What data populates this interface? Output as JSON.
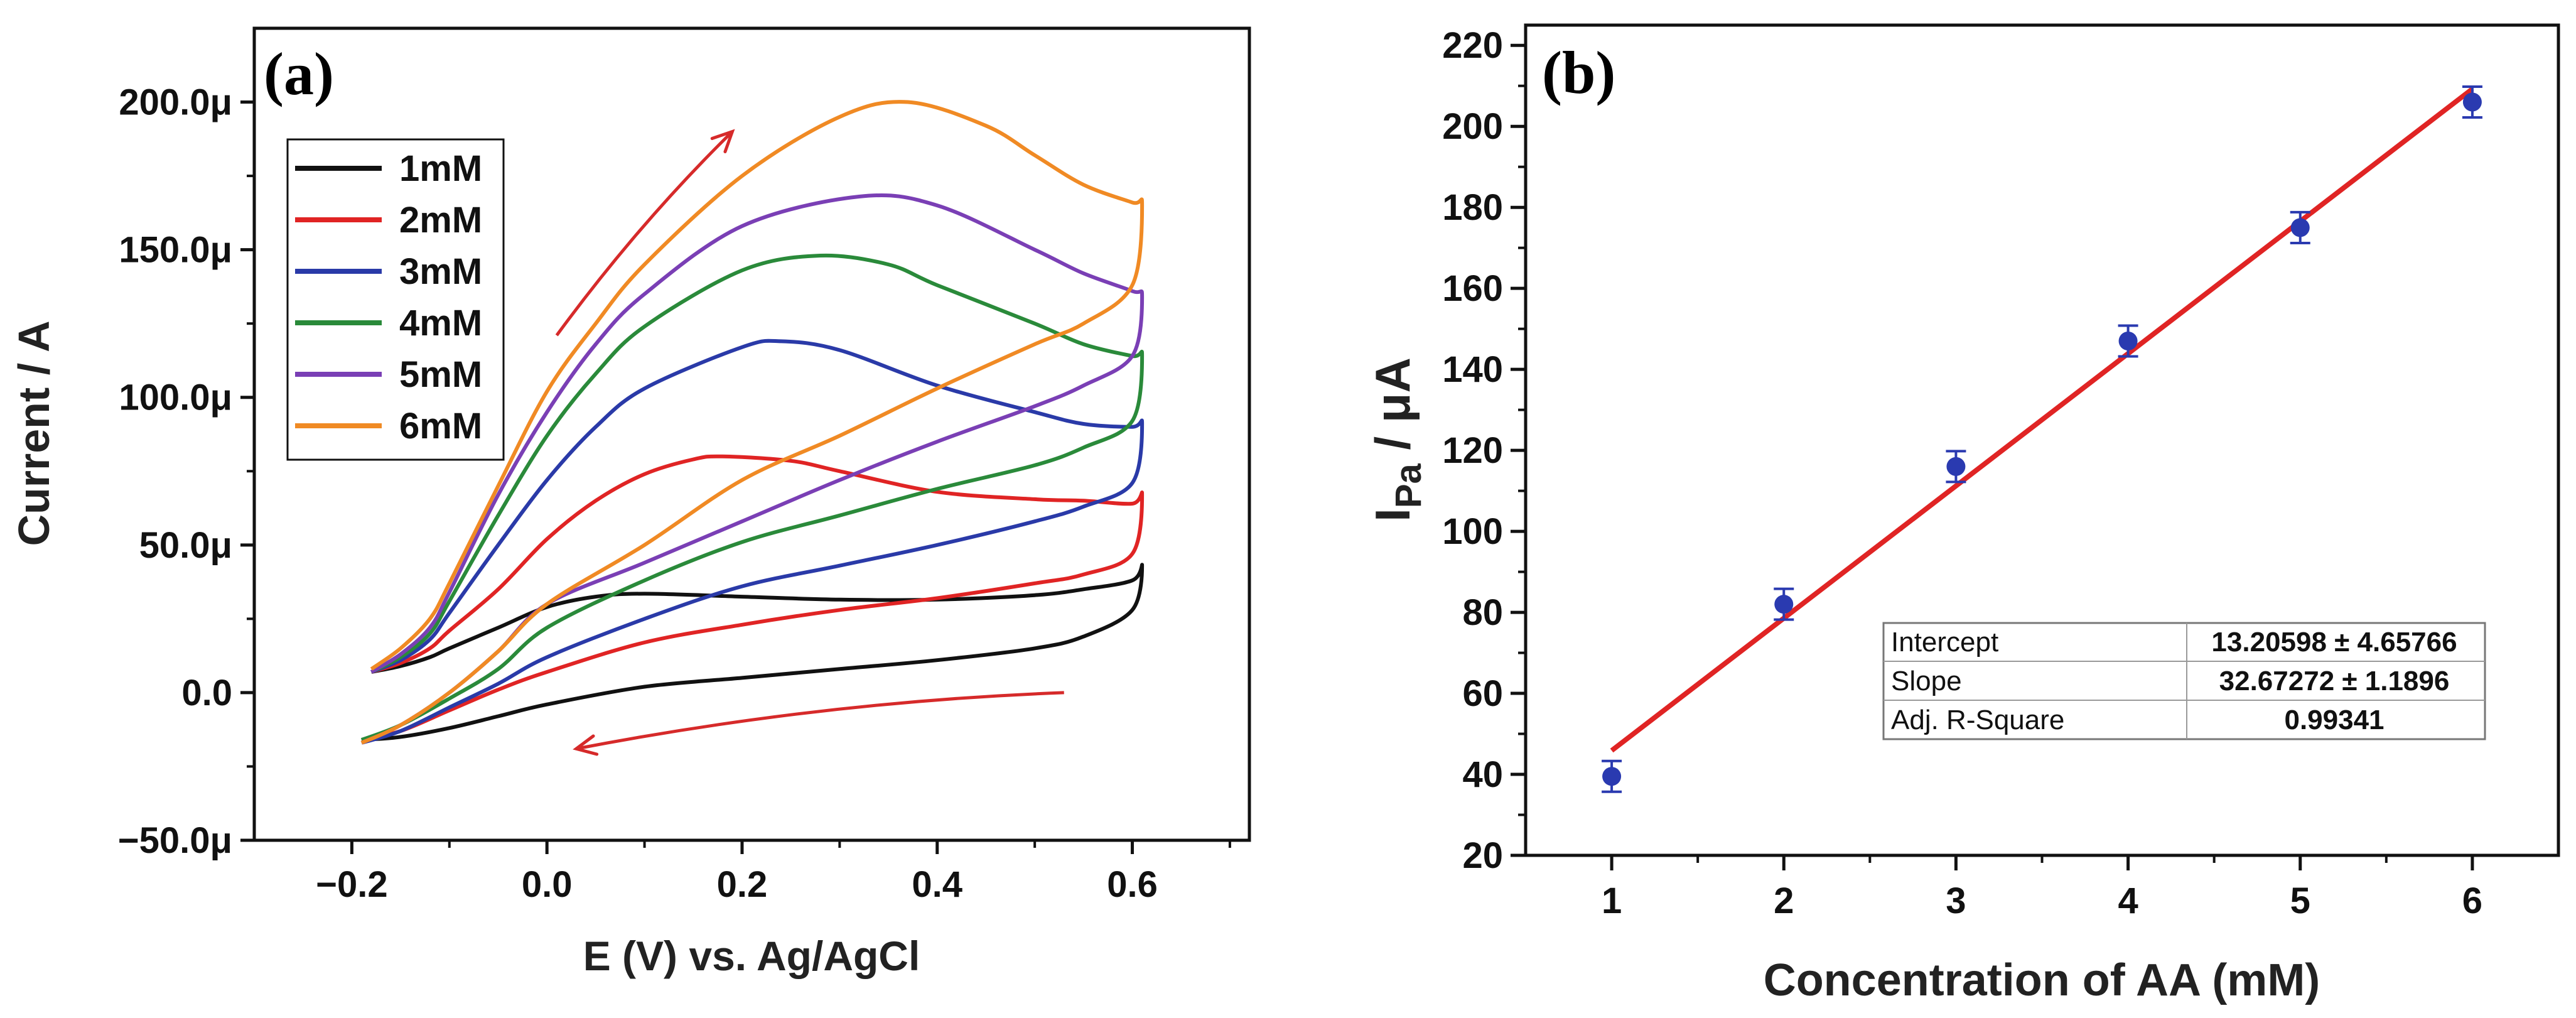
{
  "chart_data": [
    {
      "panel": "(a)",
      "type": "line",
      "title": "",
      "xlabel": "E (V) vs. Ag/AgCl",
      "ylabel": "Current / A",
      "xlim": [
        -0.3,
        0.72
      ],
      "ylim": [
        -5e-05,
        0.000225
      ],
      "xticks": [
        -0.2,
        0.0,
        0.2,
        0.4,
        0.6
      ],
      "xtick_labels": [
        "−0.2",
        "0.0",
        "0.2",
        "0.4",
        "0.6"
      ],
      "yticks": [
        -5e-05,
        0.0,
        5e-05,
        0.0001,
        0.00015,
        0.0002
      ],
      "ytick_labels": [
        "−50.0μ",
        "0.0",
        "50.0μ",
        "100.0μ",
        "150.0μ",
        "200.0μ"
      ],
      "legend_position": "top-left",
      "arrows": [
        {
          "from": [
            0.01,
            0.000121
          ],
          "to": [
            0.19,
            0.00019
          ],
          "color": "#d62a2a"
        },
        {
          "from": [
            0.53,
            0.0
          ],
          "to": [
            0.03,
            -1.9e-05
          ],
          "color": "#d62a2a"
        }
      ],
      "series": [
        {
          "name": "1mM",
          "color": "#111111",
          "x": [
            -0.18,
            -0.15,
            -0.12,
            -0.1,
            -0.05,
            0.0,
            0.05,
            0.1,
            0.2,
            0.3,
            0.4,
            0.5,
            0.55,
            0.6,
            0.61,
            0.6,
            0.55,
            0.5,
            0.4,
            0.3,
            0.2,
            0.1,
            0.0,
            -0.05,
            -0.1,
            -0.15,
            -0.19
          ],
          "y": [
            7e-06,
            9e-06,
            1.2e-05,
            1.5e-05,
            2.2e-05,
            2.9e-05,
            3.25e-05,
            3.35e-05,
            3.25e-05,
            3.15e-05,
            3.15e-05,
            3.3e-05,
            3.5e-05,
            3.8e-05,
            4.3e-05,
            2.8e-05,
            1.9e-05,
            1.5e-05,
            1.1e-05,
            8e-06,
            5e-06,
            2e-06,
            -4e-06,
            -8e-06,
            -1.2e-05,
            -1.5e-05,
            -1.6e-05
          ]
        },
        {
          "name": "2mM",
          "color": "#e02424",
          "x": [
            -0.18,
            -0.15,
            -0.12,
            -0.1,
            -0.05,
            0.0,
            0.05,
            0.1,
            0.15,
            0.18,
            0.25,
            0.3,
            0.4,
            0.5,
            0.55,
            0.6,
            0.61,
            0.6,
            0.55,
            0.5,
            0.4,
            0.3,
            0.2,
            0.1,
            0.0,
            -0.05,
            -0.1,
            -0.15,
            -0.19
          ],
          "y": [
            7e-06,
            1e-05,
            1.5e-05,
            2.1e-05,
            3.5e-05,
            5.2e-05,
            6.5e-05,
            7.4e-05,
            7.9e-05,
            8e-05,
            7.85e-05,
            7.5e-05,
            6.8e-05,
            6.55e-05,
            6.5e-05,
            6.4e-05,
            6.7e-05,
            4.7e-05,
            4e-05,
            3.7e-05,
            3.2e-05,
            2.8e-05,
            2.3e-05,
            1.7e-05,
            7e-06,
            1e-06,
            -6e-06,
            -1.3e-05,
            -1.6e-05
          ]
        },
        {
          "name": "3mM",
          "color": "#2a3aa8",
          "x": [
            -0.18,
            -0.15,
            -0.12,
            -0.1,
            -0.05,
            0.0,
            0.05,
            0.1,
            0.2,
            0.24,
            0.3,
            0.4,
            0.5,
            0.55,
            0.6,
            0.61,
            0.6,
            0.55,
            0.5,
            0.4,
            0.3,
            0.2,
            0.1,
            0.0,
            -0.05,
            -0.1,
            -0.15,
            -0.19
          ],
          "y": [
            7e-06,
            1.1e-05,
            1.8e-05,
            2.7e-05,
            5e-05,
            7.2e-05,
            9e-05,
            0.000103,
            0.000117,
            0.000119,
            0.000116,
            0.000104,
            9.5e-05,
            9.1e-05,
            9e-05,
            9.1e-05,
            7.1e-05,
            6.3e-05,
            5.8e-05,
            5e-05,
            4.3e-05,
            3.6e-05,
            2.5e-05,
            1.2e-05,
            3e-06,
            -5e-06,
            -1.3e-05,
            -1.7e-05
          ]
        },
        {
          "name": "4mM",
          "color": "#2a8a3a",
          "x": [
            -0.18,
            -0.15,
            -0.12,
            -0.1,
            -0.05,
            0.0,
            0.05,
            0.1,
            0.2,
            0.28,
            0.35,
            0.4,
            0.5,
            0.55,
            0.6,
            0.61,
            0.6,
            0.55,
            0.5,
            0.4,
            0.3,
            0.2,
            0.1,
            0.0,
            -0.05,
            -0.1,
            -0.15,
            -0.19
          ],
          "y": [
            7e-06,
            1.2e-05,
            2e-05,
            3.1e-05,
            6e-05,
            8.7e-05,
            0.000108,
            0.000124,
            0.000143,
            0.000148,
            0.000145,
            0.000138,
            0.000125,
            0.000118,
            0.000114,
            0.000114,
            9.2e-05,
            8.3e-05,
            7.7e-05,
            6.9e-05,
            6e-05,
            5.1e-05,
            3.8e-05,
            2.2e-05,
            8e-06,
            -2e-06,
            -1.1e-05,
            -1.6e-05
          ]
        },
        {
          "name": "5mM",
          "color": "#7a3fb5",
          "x": [
            -0.18,
            -0.15,
            -0.12,
            -0.1,
            -0.05,
            0.0,
            0.05,
            0.1,
            0.2,
            0.32,
            0.4,
            0.5,
            0.55,
            0.6,
            0.61,
            0.6,
            0.55,
            0.5,
            0.4,
            0.3,
            0.2,
            0.1,
            0.0,
            -0.05,
            -0.1,
            -0.15,
            -0.19
          ],
          "y": [
            7e-06,
            1.3e-05,
            2.2e-05,
            3.4e-05,
            6.7e-05,
            9.5e-05,
            0.000118,
            0.000135,
            0.000158,
            0.000168,
            0.000165,
            0.00015,
            0.000142,
            0.000136,
            0.000134,
            0.000114,
            0.000104,
            9.7e-05,
            8.5e-05,
            7.2e-05,
            5.8e-05,
            4.4e-05,
            3e-05,
            1.4e-05,
            0.0,
            -1.1e-05,
            -1.7e-05
          ]
        },
        {
          "name": "6mM",
          "color": "#f08a24",
          "x": [
            -0.18,
            -0.15,
            -0.12,
            -0.1,
            -0.05,
            0.0,
            0.05,
            0.1,
            0.2,
            0.3,
            0.37,
            0.45,
            0.5,
            0.55,
            0.6,
            0.61,
            0.6,
            0.55,
            0.5,
            0.4,
            0.3,
            0.2,
            0.1,
            0.0,
            -0.05,
            -0.1,
            -0.15,
            -0.19
          ],
          "y": [
            8e-06,
            1.5e-05,
            2.5e-05,
            3.7e-05,
            7e-05,
            0.000102,
            0.000125,
            0.000145,
            0.000175,
            0.000195,
            0.0002,
            0.000192,
            0.000182,
            0.000172,
            0.000166,
            0.000165,
            0.000138,
            0.000125,
            0.000118,
            0.000103,
            8.7e-05,
            7.2e-05,
            5e-05,
            3e-05,
            1.4e-05,
            0.0,
            -1.1e-05,
            -1.7e-05
          ]
        }
      ]
    },
    {
      "panel": "(b)",
      "type": "scatter",
      "title": "",
      "xlabel": "Concentration of AA (mM)",
      "ylabel_main": "I",
      "ylabel_sub": "Pa",
      "ylabel_tail": " / μA",
      "xlim": [
        0.5,
        6.5
      ],
      "ylim": [
        20,
        225
      ],
      "xticks": [
        1,
        2,
        3,
        4,
        5,
        6
      ],
      "xtick_labels": [
        "1",
        "2",
        "3",
        "4",
        "5",
        "6"
      ],
      "yticks": [
        20,
        40,
        60,
        80,
        100,
        120,
        140,
        160,
        180,
        200,
        220
      ],
      "ytick_labels": [
        "20",
        "40",
        "60",
        "80",
        "100",
        "120",
        "140",
        "160",
        "180",
        "200",
        "220"
      ],
      "points": [
        {
          "x": 1,
          "y": 39.5,
          "err": 3.8
        },
        {
          "x": 2,
          "y": 82,
          "err": 3.8
        },
        {
          "x": 3,
          "y": 116,
          "err": 3.8
        },
        {
          "x": 4,
          "y": 147,
          "err": 3.8
        },
        {
          "x": 5,
          "y": 175,
          "err": 3.8
        },
        {
          "x": 6,
          "y": 206,
          "err": 3.8
        }
      ],
      "point_color": "#2a3ab0",
      "fit": {
        "intercept": 13.20598,
        "slope": 32.67272,
        "x_range": [
          1,
          6
        ],
        "color": "#e02424"
      },
      "fit_table": {
        "position": "bottom-right",
        "rows": [
          {
            "label": "Intercept",
            "value": "13.20598 ± 4.65766"
          },
          {
            "label": "Slope",
            "value": "32.67272 ± 1.1896"
          },
          {
            "label": "Adj. R-Square",
            "value": "0.99341"
          }
        ]
      }
    }
  ]
}
